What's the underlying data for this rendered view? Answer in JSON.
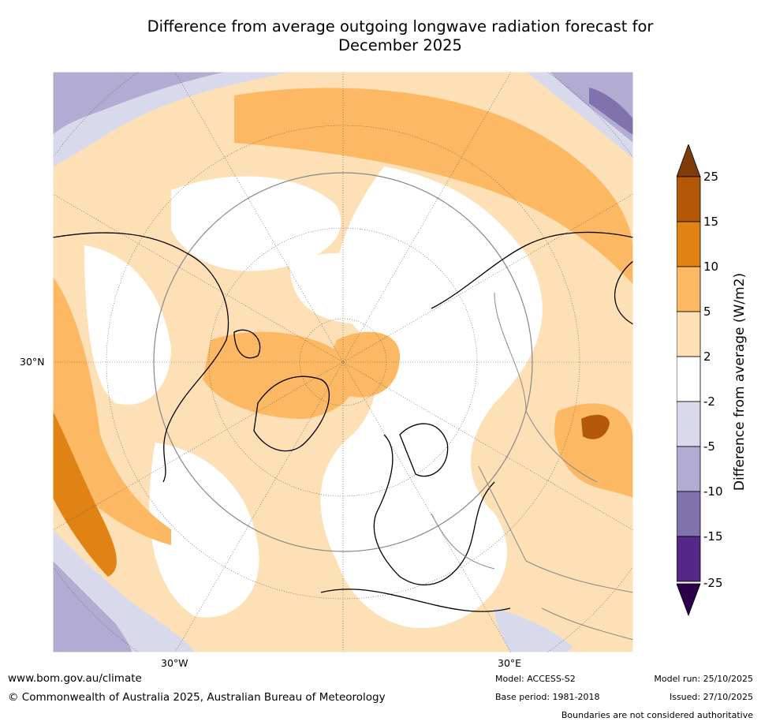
{
  "title_line1": "Difference from average outgoing longwave radiation forecast for",
  "title_line2": "December 2025",
  "map": {
    "lat_label": "30°N",
    "lon_label_left": "30°W",
    "lon_label_right": "30°E"
  },
  "colorbar": {
    "title": "Difference from average (W/m2)",
    "ticks": [
      "25",
      "15",
      "10",
      "5",
      "2",
      "-2",
      "-5",
      "-10",
      "-15",
      "-25"
    ],
    "colors": [
      "#7f3b08",
      "#b35806",
      "#e08214",
      "#fdb863",
      "#fee0b6",
      "#ffffff",
      "#d8daeb",
      "#b2abd2",
      "#8073ac",
      "#542788",
      "#2d004b"
    ]
  },
  "footer": {
    "website": "www.bom.gov.au/climate",
    "copyright": "© Commonwealth of Australia 2025, Australian Bureau of Meteorology",
    "model": "Model: ACCESS-S2",
    "base_period": "Base period: 1981-2018",
    "model_run": "Model run: 25/10/2025",
    "issued": "Issued: 27/10/2025",
    "disclaimer": "Boundaries are not considered authoritative"
  }
}
